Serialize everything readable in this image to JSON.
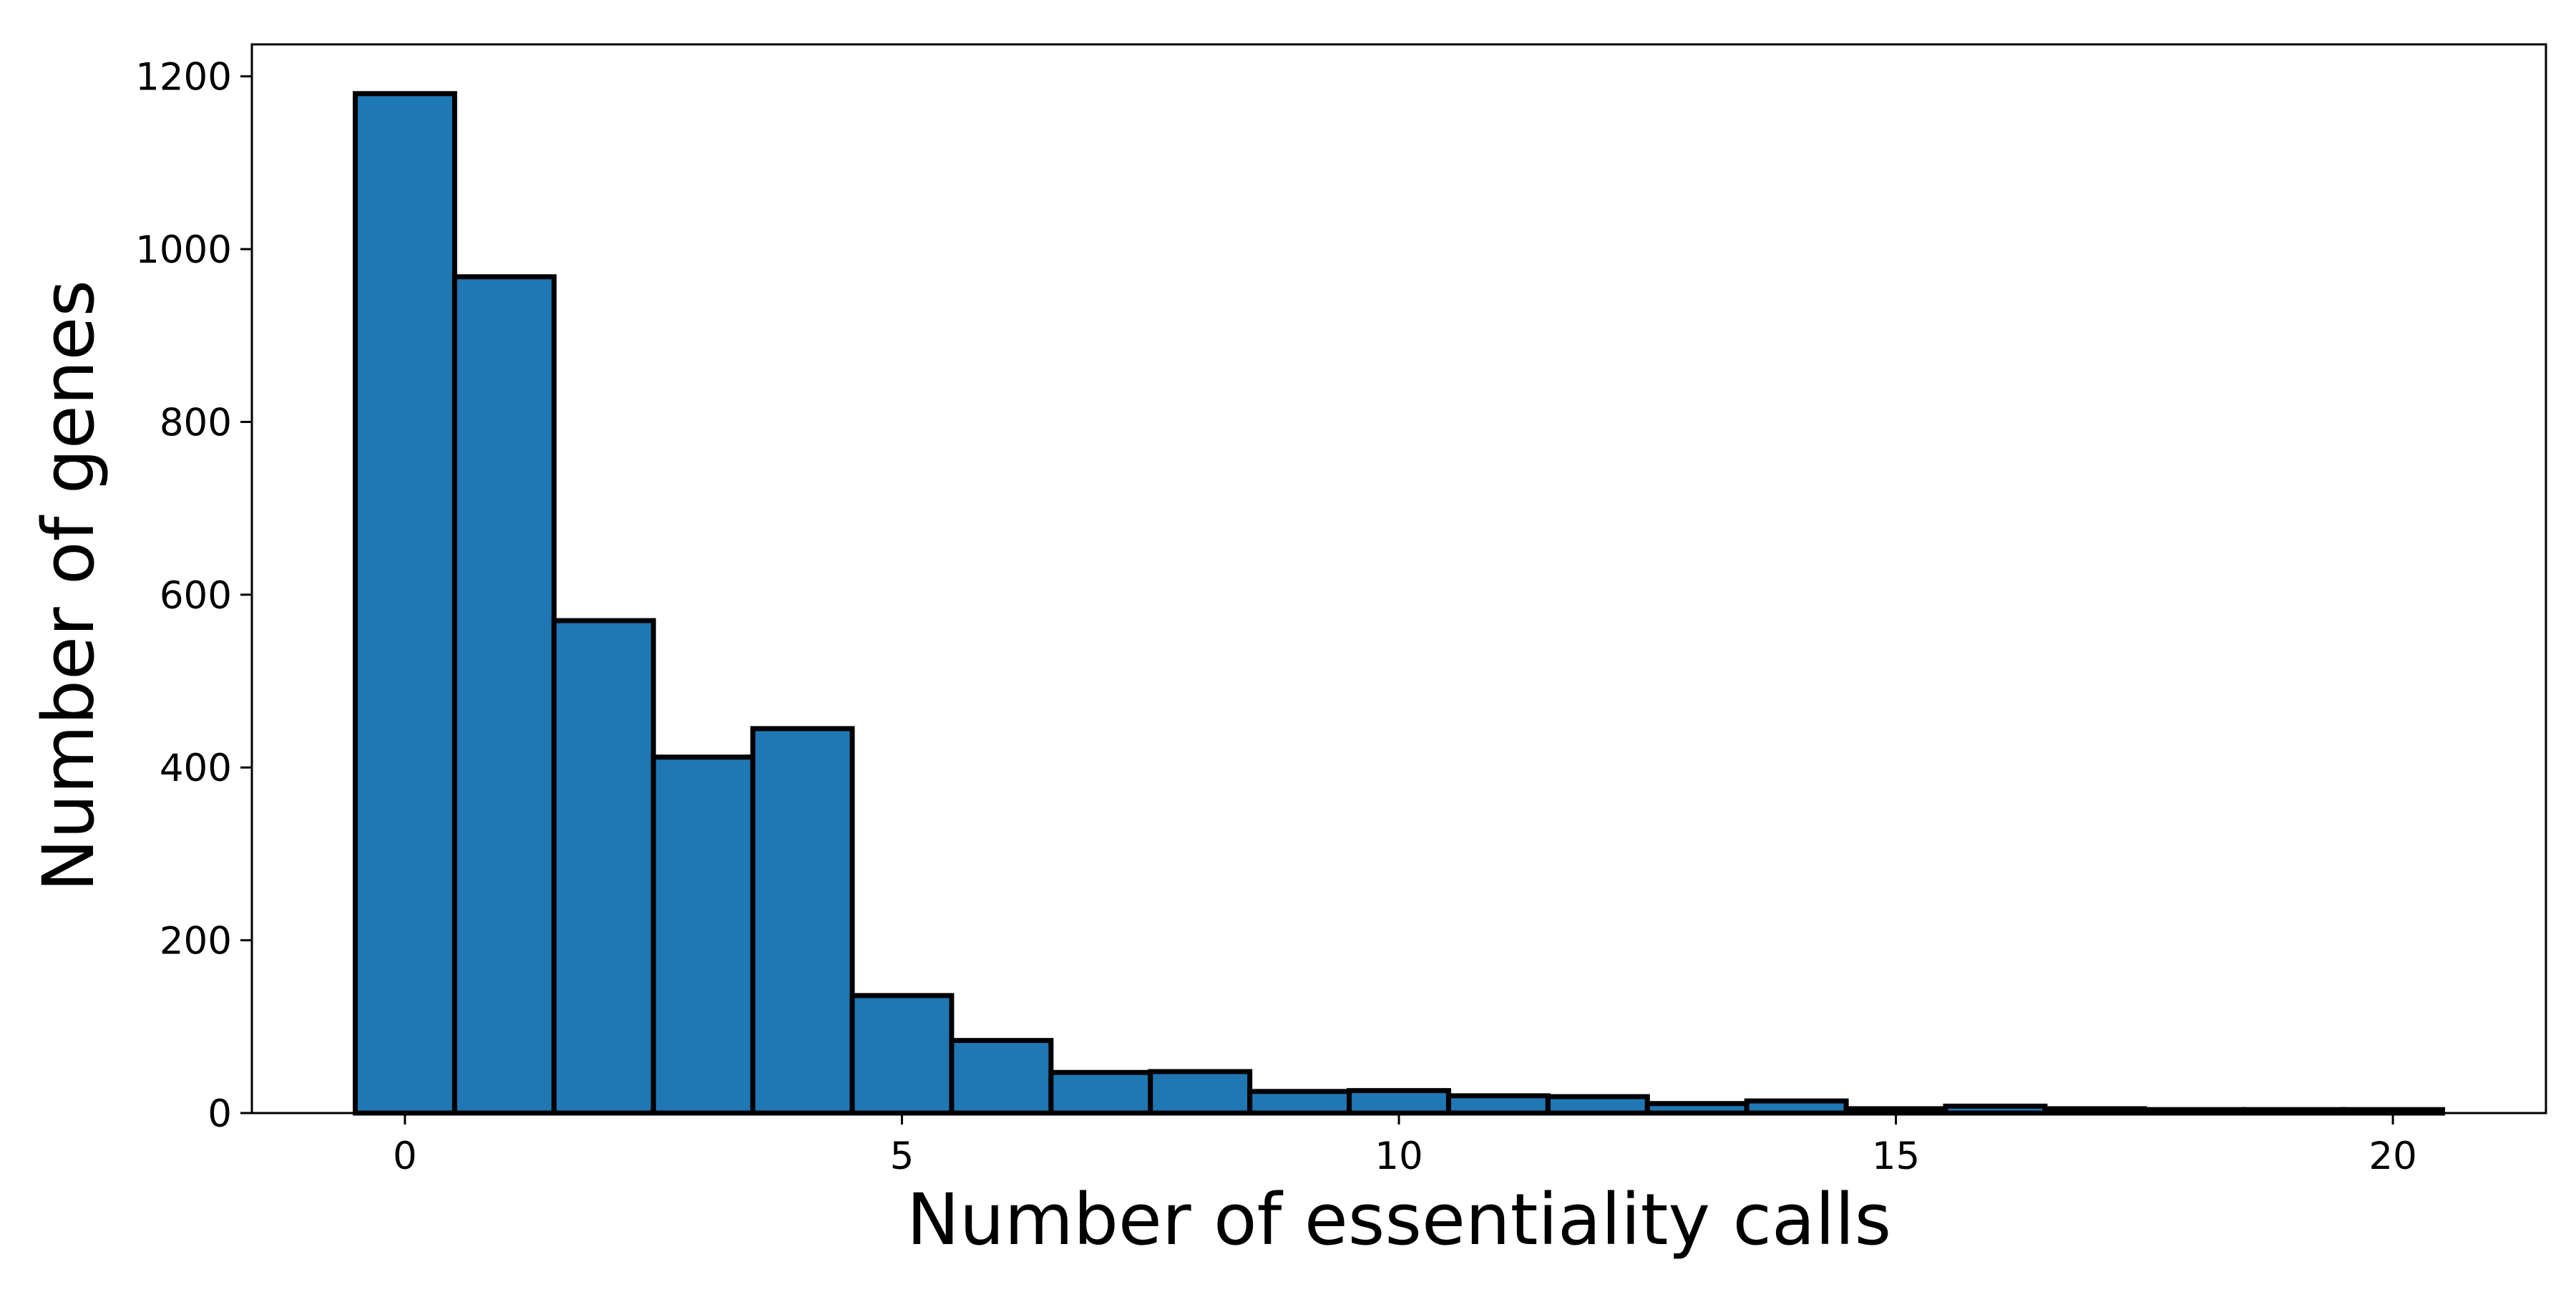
{
  "chart_data": {
    "type": "bar",
    "x": [
      0,
      1,
      2,
      3,
      4,
      5,
      6,
      7,
      8,
      9,
      10,
      11,
      12,
      13,
      14,
      15,
      16,
      17,
      18,
      19,
      20
    ],
    "values": [
      1180,
      968,
      570,
      412,
      445,
      136,
      84,
      47,
      48,
      25,
      26,
      20,
      19,
      11,
      14,
      5,
      8,
      5,
      4,
      4,
      4
    ],
    "bin_width": 1,
    "title": "",
    "xlabel": "Number of essentiality calls",
    "ylabel": "Number of genes",
    "xlim": [
      -1.54,
      21.54
    ],
    "ylim": [
      0,
      1237
    ],
    "xticks": [
      0,
      5,
      10,
      15,
      20
    ],
    "yticks": [
      0,
      200,
      400,
      600,
      800,
      1000,
      1200
    ],
    "bar_color": "#1f77b4",
    "edge_color": "#000000",
    "grid": false,
    "legend": false
  }
}
